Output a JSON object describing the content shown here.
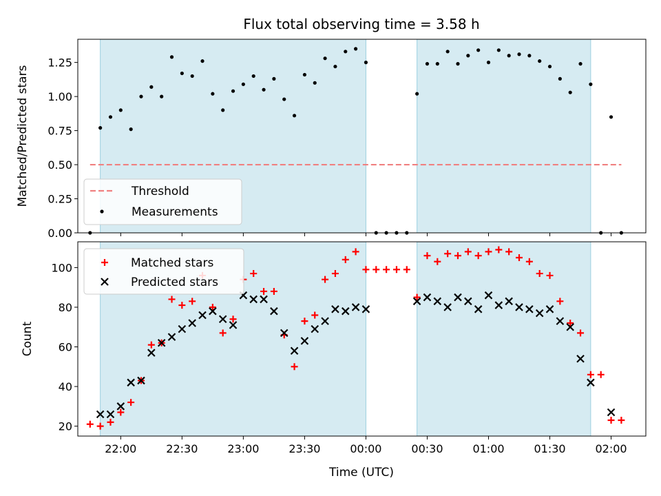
{
  "figure": {
    "title": "Flux total observing time = 3.58 h",
    "xlabel": "Time (UTC)"
  },
  "chart_data": [
    {
      "type": "scatter",
      "ylabel": "Matched/Predicted stars",
      "xlim": [
        "21:39",
        "02:17"
      ],
      "ylim": [
        0,
        1.42
      ],
      "yticks": [
        "0.00",
        "0.25",
        "0.50",
        "0.75",
        "1.00",
        "1.25"
      ],
      "grid": false,
      "legend_position": "lower-left",
      "shaded_intervals": [
        [
          "21:50",
          "00:00"
        ],
        [
          "00:25",
          "01:50"
        ]
      ],
      "threshold": {
        "name": "Threshold",
        "y": 0.5,
        "x_range": [
          "21:45",
          "02:05"
        ],
        "color": "#f08080"
      },
      "series": [
        {
          "name": "Measurements",
          "color": "#000000",
          "x": [
            "21:45",
            "21:50",
            "21:55",
            "22:00",
            "22:05",
            "22:10",
            "22:15",
            "22:20",
            "22:25",
            "22:30",
            "22:35",
            "22:40",
            "22:45",
            "22:50",
            "22:55",
            "23:00",
            "23:05",
            "23:10",
            "23:15",
            "23:20",
            "23:25",
            "23:30",
            "23:35",
            "23:40",
            "23:45",
            "23:50",
            "23:55",
            "00:00",
            "00:05",
            "00:10",
            "00:15",
            "00:20",
            "00:25",
            "00:30",
            "00:35",
            "00:40",
            "00:45",
            "00:50",
            "00:55",
            "01:00",
            "01:05",
            "01:10",
            "01:15",
            "01:20",
            "01:25",
            "01:30",
            "01:35",
            "01:40",
            "01:45",
            "01:50",
            "01:55",
            "02:00",
            "02:05"
          ],
          "y": [
            0.0,
            0.77,
            0.85,
            0.9,
            0.76,
            1.0,
            1.07,
            1.0,
            1.29,
            1.17,
            1.15,
            1.26,
            1.02,
            0.9,
            1.04,
            1.09,
            1.15,
            1.05,
            1.13,
            0.98,
            0.86,
            1.16,
            1.1,
            1.28,
            1.22,
            1.33,
            1.35,
            1.25,
            0.0,
            0.0,
            0.0,
            0.0,
            1.02,
            1.24,
            1.24,
            1.33,
            1.24,
            1.3,
            1.34,
            1.25,
            1.34,
            1.3,
            1.31,
            1.3,
            1.26,
            1.22,
            1.13,
            1.03,
            1.24,
            1.09,
            0.0,
            0.85,
            0.0
          ]
        }
      ]
    },
    {
      "type": "scatter",
      "ylabel": "Count",
      "xlim": [
        "21:39",
        "02:17"
      ],
      "ylim": [
        15,
        113
      ],
      "yticks": [
        "20",
        "40",
        "60",
        "80",
        "100"
      ],
      "xticks": [
        "22:00",
        "22:30",
        "23:00",
        "23:30",
        "00:00",
        "00:30",
        "01:00",
        "01:30",
        "02:00"
      ],
      "grid": false,
      "legend_position": "upper-left",
      "shaded_intervals": [
        [
          "21:50",
          "00:00"
        ],
        [
          "00:25",
          "01:50"
        ]
      ],
      "series": [
        {
          "name": "Matched stars",
          "marker": "plus",
          "color": "#ff0000",
          "x": [
            "21:45",
            "21:50",
            "21:55",
            "22:00",
            "22:05",
            "22:10",
            "22:15",
            "22:20",
            "22:25",
            "22:30",
            "22:35",
            "22:40",
            "22:45",
            "22:50",
            "22:55",
            "23:00",
            "23:05",
            "23:10",
            "23:15",
            "23:20",
            "23:25",
            "23:30",
            "23:35",
            "23:40",
            "23:45",
            "23:50",
            "23:55",
            "00:00",
            "00:05",
            "00:10",
            "00:15",
            "00:20",
            "00:25",
            "00:30",
            "00:35",
            "00:40",
            "00:45",
            "00:50",
            "00:55",
            "01:00",
            "01:05",
            "01:10",
            "01:15",
            "01:20",
            "01:25",
            "01:30",
            "01:35",
            "01:40",
            "01:45",
            "01:50",
            "01:55",
            "02:00",
            "02:05"
          ],
          "y": [
            21,
            20,
            22,
            27,
            32,
            43,
            61,
            62,
            84,
            81,
            83,
            96,
            80,
            67,
            74,
            94,
            97,
            88,
            88,
            66,
            50,
            73,
            76,
            94,
            97,
            104,
            108,
            99,
            99,
            99,
            99,
            99,
            85,
            106,
            103,
            107,
            106,
            108,
            106,
            108,
            109,
            108,
            105,
            103,
            97,
            96,
            83,
            72,
            67,
            46,
            46,
            23,
            23
          ]
        },
        {
          "name": "Predicted stars",
          "marker": "x",
          "color": "#000000",
          "x": [
            "21:50",
            "21:55",
            "22:00",
            "22:05",
            "22:10",
            "22:15",
            "22:20",
            "22:25",
            "22:30",
            "22:35",
            "22:40",
            "22:45",
            "22:50",
            "22:55",
            "23:00",
            "23:05",
            "23:10",
            "23:15",
            "23:20",
            "23:25",
            "23:30",
            "23:35",
            "23:40",
            "23:45",
            "23:50",
            "23:55",
            "00:00",
            "00:25",
            "00:30",
            "00:35",
            "00:40",
            "00:45",
            "00:50",
            "00:55",
            "01:00",
            "01:05",
            "01:10",
            "01:15",
            "01:20",
            "01:25",
            "01:30",
            "01:35",
            "01:40",
            "01:45",
            "01:50",
            "02:00"
          ],
          "y": [
            26,
            26,
            30,
            42,
            43,
            57,
            62,
            65,
            69,
            72,
            76,
            78,
            74,
            71,
            86,
            84,
            84,
            78,
            67,
            58,
            63,
            69,
            73,
            79,
            78,
            80,
            79,
            83,
            85,
            83,
            80,
            85,
            83,
            79,
            86,
            81,
            83,
            80,
            79,
            77,
            79,
            73,
            70,
            54,
            42,
            27
          ]
        }
      ]
    }
  ]
}
